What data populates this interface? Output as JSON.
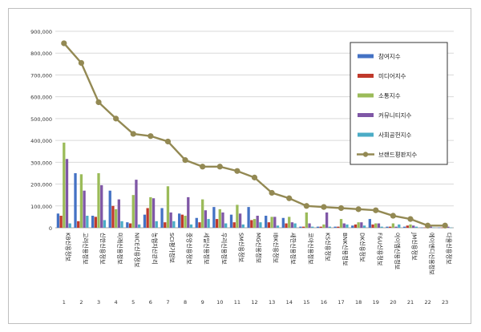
{
  "chart_data": {
    "type": "bar",
    "y_axis": {
      "min": 0,
      "max": 900000,
      "step": 100000,
      "grid": true,
      "tick_labels": [
        "0",
        "100,000",
        "200,000",
        "300,000",
        "400,000",
        "500,000",
        "600,000",
        "700,000",
        "800,000",
        "900,000"
      ]
    },
    "categories": [
      "KB신용정보",
      "고려신용정보",
      "신한신용정보",
      "미래신용정보",
      "NICE신용정보",
      "농협자산관리",
      "SCI평가정보",
      "중앙신용정보",
      "세일신용정보",
      "우리신용정보",
      "SM신용정보",
      "MG신용정보",
      "IBK신용정보",
      "새한신용정보",
      "코아신용정보",
      "KS신용정보",
      "BNK신용정보",
      "DK신용정보",
      "F&U신용정보",
      "아이엠신용정보",
      "JM신용정보",
      "에이엔디신용정보",
      "다울신용정보"
    ],
    "ranks": [
      "1",
      "2",
      "3",
      "4",
      "5",
      "6",
      "7",
      "8",
      "9",
      "10",
      "11",
      "12",
      "13",
      "14",
      "15",
      "16",
      "17",
      "18",
      "19",
      "20",
      "21",
      "22",
      "23"
    ],
    "series": [
      {
        "name": "참여지수",
        "color": "#4472c4",
        "values": [
          65000,
          250000,
          55000,
          170000,
          25000,
          60000,
          90000,
          65000,
          45000,
          95000,
          60000,
          95000,
          55000,
          45000,
          5000,
          5000,
          5000,
          10000,
          40000,
          5000,
          5000,
          1000,
          1000
        ]
      },
      {
        "name": "미디어지수",
        "color": "#c0392b",
        "values": [
          55000,
          30000,
          50000,
          100000,
          20000,
          90000,
          25000,
          60000,
          25000,
          40000,
          25000,
          35000,
          25000,
          20000,
          5000,
          5000,
          5000,
          15000,
          15000,
          5000,
          10000,
          1000,
          1000
        ]
      },
      {
        "name": "소통지수",
        "color": "#9bbb59",
        "values": [
          390000,
          245000,
          250000,
          85000,
          150000,
          140000,
          190000,
          55000,
          130000,
          85000,
          105000,
          40000,
          50000,
          50000,
          70000,
          15000,
          40000,
          25000,
          20000,
          20000,
          15000,
          5000,
          5000
        ]
      },
      {
        "name": "커뮤니티지수",
        "color": "#7f57a6",
        "values": [
          315000,
          170000,
          195000,
          130000,
          220000,
          135000,
          70000,
          140000,
          80000,
          70000,
          65000,
          55000,
          50000,
          25000,
          20000,
          70000,
          20000,
          25000,
          20000,
          5000,
          10000,
          5000,
          5000
        ]
      },
      {
        "name": "사회공헌지수",
        "color": "#4bacc6",
        "values": [
          20000,
          55000,
          35000,
          30000,
          15000,
          30000,
          30000,
          15000,
          40000,
          20000,
          15000,
          25000,
          10000,
          20000,
          5000,
          5000,
          15000,
          10000,
          5000,
          15000,
          5000,
          1000,
          1000
        ]
      },
      {
        "name": "브랜드평판지수",
        "type": "line",
        "color": "#938953",
        "values": [
          845000,
          755000,
          575000,
          500000,
          430000,
          420000,
          395000,
          310000,
          280000,
          280000,
          260000,
          230000,
          160000,
          135000,
          100000,
          95000,
          90000,
          85000,
          80000,
          55000,
          40000,
          10000,
          10000
        ]
      }
    ],
    "legend": {
      "placement": "right"
    }
  }
}
